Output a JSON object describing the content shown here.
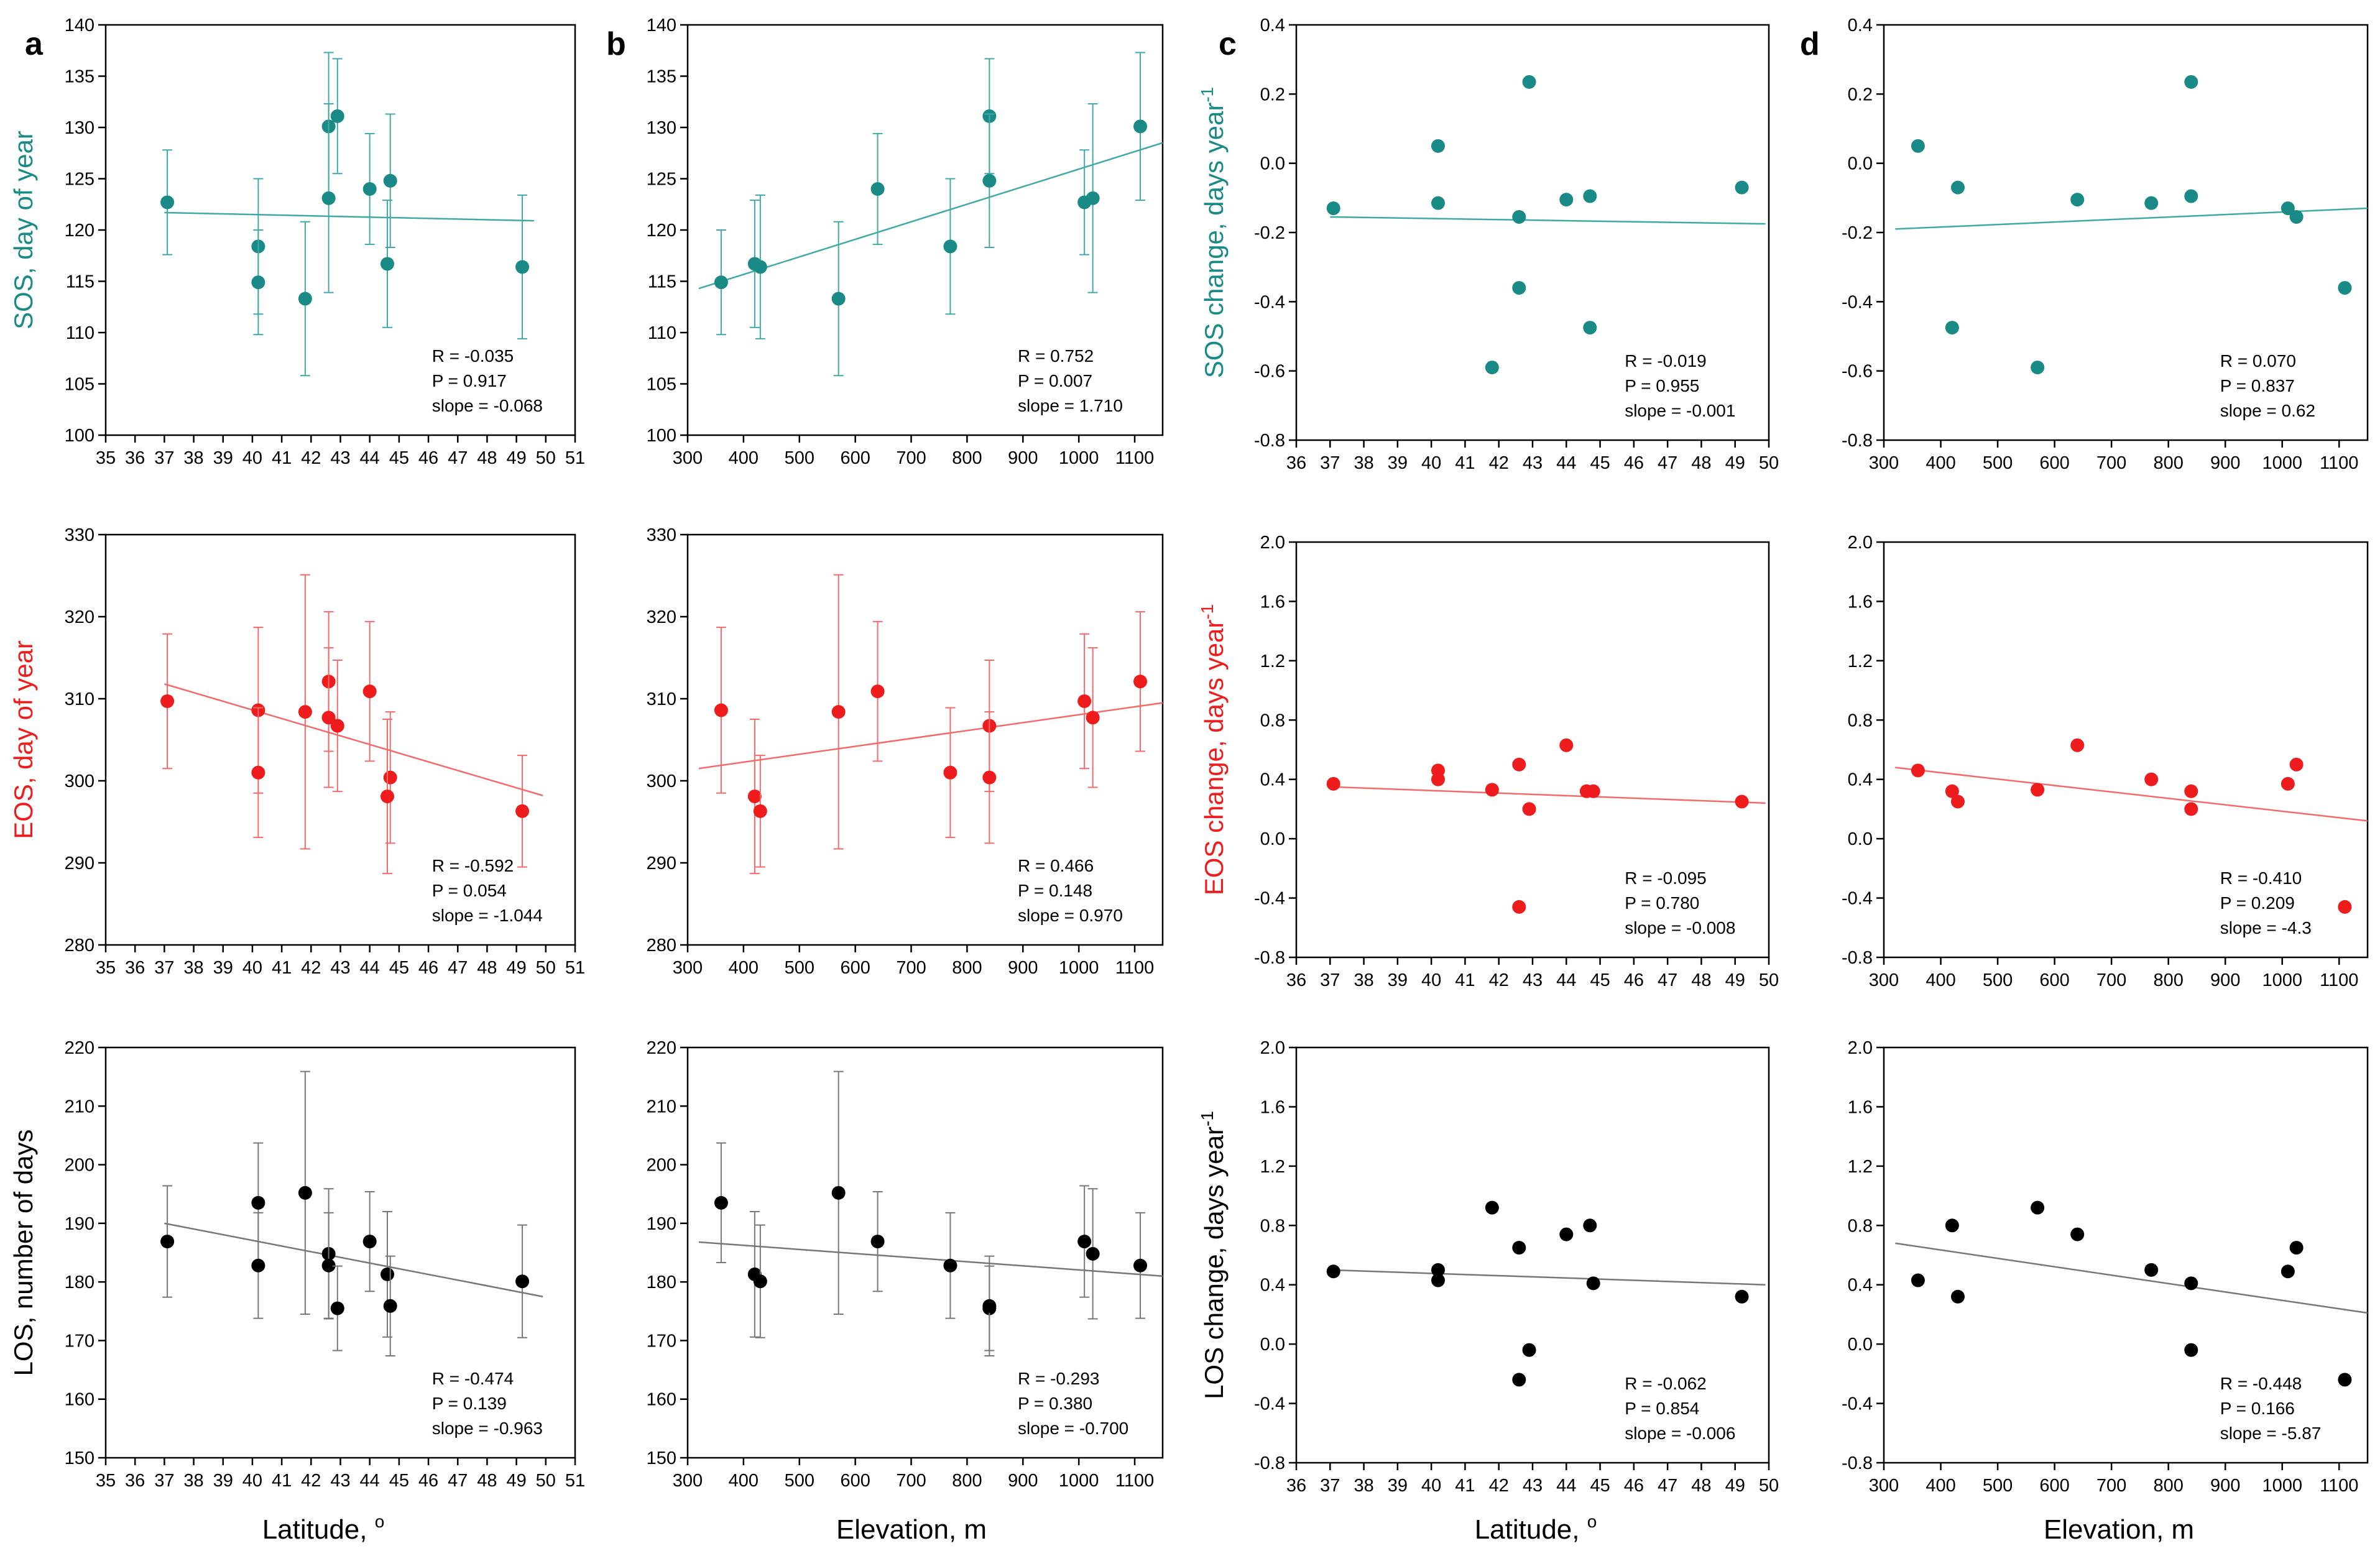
{
  "figure": {
    "panel_labels": [
      "a",
      "b",
      "c",
      "d"
    ],
    "x_labels": {
      "latitude": "Latitude, ",
      "latitude_sup": "o",
      "elevation": "Elevation, m"
    },
    "colors": {
      "teal": "#1a8a87",
      "red": "#ee1c1c",
      "black": "#000000",
      "line_teal": "#3fa9a6",
      "line_red": "#f26a6a",
      "line_black": "#777777"
    }
  },
  "chart_data": [
    {
      "id": "a1",
      "type": "scatter",
      "color": "teal",
      "xlabel": "",
      "ylabel": "SOS, day of year",
      "ylabel_sup": "",
      "xlim": [
        35,
        51
      ],
      "xticks": [
        35,
        36,
        37,
        38,
        39,
        40,
        41,
        42,
        43,
        44,
        45,
        46,
        47,
        48,
        49,
        50,
        51
      ],
      "ylim": [
        100,
        140
      ],
      "yticks": [
        100,
        105,
        110,
        115,
        120,
        125,
        130,
        135,
        140
      ],
      "ydec": 0,
      "points": [
        {
          "x": 37.1,
          "y": 122.7,
          "err": 5.1
        },
        {
          "x": 40.2,
          "y": 118.4,
          "err": 6.6
        },
        {
          "x": 40.2,
          "y": 114.9,
          "err": 5.1
        },
        {
          "x": 41.8,
          "y": 113.3,
          "err": 7.5
        },
        {
          "x": 42.6,
          "y": 130.1,
          "err": 7.2
        },
        {
          "x": 42.6,
          "y": 123.1,
          "err": 9.2
        },
        {
          "x": 42.9,
          "y": 131.1,
          "err": 5.6
        },
        {
          "x": 44.0,
          "y": 124.0,
          "err": 5.4
        },
        {
          "x": 44.7,
          "y": 124.8,
          "err": 6.5
        },
        {
          "x": 44.6,
          "y": 116.7,
          "err": 6.2
        },
        {
          "x": 49.2,
          "y": 116.4,
          "err": 7.0
        }
      ],
      "fit": {
        "x1": 37,
        "y1": 121.7,
        "x2": 49.6,
        "y2": 120.9
      },
      "stats": [
        "R = -0.035",
        "P = 0.917",
        "slope = -0.068"
      ]
    },
    {
      "id": "b1",
      "type": "scatter",
      "color": "teal",
      "xlabel": "",
      "ylabel": "",
      "ylabel_sup": "",
      "xlim": [
        300,
        1150
      ],
      "xticks": [
        300,
        400,
        500,
        600,
        700,
        800,
        900,
        1000,
        1100
      ],
      "ylim": [
        100,
        140
      ],
      "yticks": [
        100,
        105,
        110,
        115,
        120,
        125,
        130,
        135,
        140
      ],
      "ydec": 0,
      "points": [
        {
          "x": 360,
          "y": 114.9,
          "err": 5.1
        },
        {
          "x": 420,
          "y": 116.7,
          "err": 6.2
        },
        {
          "x": 430,
          "y": 116.4,
          "err": 7.0
        },
        {
          "x": 570,
          "y": 113.3,
          "err": 7.5
        },
        {
          "x": 640,
          "y": 124.0,
          "err": 5.4
        },
        {
          "x": 770,
          "y": 118.4,
          "err": 6.6
        },
        {
          "x": 840,
          "y": 131.1,
          "err": 5.6
        },
        {
          "x": 840,
          "y": 124.8,
          "err": 6.5
        },
        {
          "x": 1010,
          "y": 122.7,
          "err": 5.1
        },
        {
          "x": 1025,
          "y": 123.1,
          "err": 9.2
        },
        {
          "x": 1110,
          "y": 130.1,
          "err": 7.2
        }
      ],
      "fit": {
        "x1": 320,
        "y1": 114.3,
        "x2": 1150,
        "y2": 128.5
      },
      "stats": [
        "R = 0.752",
        "P = 0.007",
        "slope = 1.710"
      ]
    },
    {
      "id": "c1",
      "type": "scatter",
      "color": "teal",
      "xlabel": "",
      "ylabel": "SOS change, days year",
      "ylabel_sup": "-1",
      "xlim": [
        36,
        50
      ],
      "xticks": [
        36,
        37,
        38,
        39,
        40,
        41,
        42,
        43,
        44,
        45,
        46,
        47,
        48,
        49,
        50
      ],
      "ylim": [
        -0.8,
        0.4
      ],
      "yticks": [
        -0.8,
        -0.6,
        -0.4,
        -0.2,
        0.0,
        0.2,
        0.4
      ],
      "ydec": 1,
      "points": [
        {
          "x": 37.1,
          "y": -0.13
        },
        {
          "x": 40.2,
          "y": 0.05
        },
        {
          "x": 40.2,
          "y": -0.115
        },
        {
          "x": 41.8,
          "y": -0.59
        },
        {
          "x": 42.6,
          "y": -0.155
        },
        {
          "x": 42.6,
          "y": -0.36
        },
        {
          "x": 42.9,
          "y": 0.235
        },
        {
          "x": 44.0,
          "y": -0.105
        },
        {
          "x": 44.7,
          "y": -0.095
        },
        {
          "x": 44.7,
          "y": -0.475
        },
        {
          "x": 49.2,
          "y": -0.07
        }
      ],
      "fit": {
        "x1": 37,
        "y1": -0.155,
        "x2": 49.9,
        "y2": -0.175
      },
      "stats": [
        "R = -0.019",
        "P = 0.955",
        "slope = -0.001"
      ]
    },
    {
      "id": "d1",
      "type": "scatter",
      "color": "teal",
      "xlabel": "",
      "ylabel": "",
      "ylabel_sup": "",
      "xlim": [
        300,
        1150
      ],
      "xticks": [
        300,
        400,
        500,
        600,
        700,
        800,
        900,
        1000,
        1100
      ],
      "ylim": [
        -0.8,
        0.4
      ],
      "yticks": [
        -0.8,
        -0.6,
        -0.4,
        -0.2,
        0.0,
        0.2,
        0.4
      ],
      "ydec": 1,
      "points": [
        {
          "x": 360,
          "y": 0.05
        },
        {
          "x": 420,
          "y": -0.475
        },
        {
          "x": 430,
          "y": -0.07
        },
        {
          "x": 570,
          "y": -0.59
        },
        {
          "x": 640,
          "y": -0.105
        },
        {
          "x": 770,
          "y": -0.115
        },
        {
          "x": 840,
          "y": 0.235
        },
        {
          "x": 840,
          "y": -0.095
        },
        {
          "x": 1010,
          "y": -0.13
        },
        {
          "x": 1025,
          "y": -0.155
        },
        {
          "x": 1110,
          "y": -0.36
        }
      ],
      "fit": {
        "x1": 320,
        "y1": -0.19,
        "x2": 1150,
        "y2": -0.13
      },
      "stats": [
        "R = 0.070",
        "P = 0.837",
        "slope = 0.62"
      ]
    },
    {
      "id": "a2",
      "type": "scatter",
      "color": "red",
      "xlabel": "",
      "ylabel": "EOS, day of year",
      "ylabel_sup": "",
      "xlim": [
        35,
        51
      ],
      "xticks": [
        35,
        36,
        37,
        38,
        39,
        40,
        41,
        42,
        43,
        44,
        45,
        46,
        47,
        48,
        49,
        50,
        51
      ],
      "ylim": [
        280,
        330
      ],
      "yticks": [
        280,
        290,
        300,
        310,
        320,
        330
      ],
      "ydec": 0,
      "points": [
        {
          "x": 37.1,
          "y": 309.7,
          "err": 8.2
        },
        {
          "x": 40.2,
          "y": 308.6,
          "err": 10.1
        },
        {
          "x": 40.2,
          "y": 301.0,
          "err": 7.9
        },
        {
          "x": 41.8,
          "y": 308.4,
          "err": 16.7
        },
        {
          "x": 42.6,
          "y": 312.1,
          "err": 8.5
        },
        {
          "x": 42.6,
          "y": 307.7,
          "err": 8.5
        },
        {
          "x": 42.9,
          "y": 306.7,
          "err": 8.0
        },
        {
          "x": 44.0,
          "y": 310.9,
          "err": 8.5
        },
        {
          "x": 44.7,
          "y": 300.4,
          "err": 8.0
        },
        {
          "x": 44.6,
          "y": 298.1,
          "err": 9.4
        },
        {
          "x": 49.2,
          "y": 296.3,
          "err": 6.8
        }
      ],
      "fit": {
        "x1": 37,
        "y1": 311.8,
        "x2": 49.9,
        "y2": 298.2
      },
      "stats": [
        "R = -0.592",
        "P = 0.054",
        "slope = -1.044"
      ]
    },
    {
      "id": "b2",
      "type": "scatter",
      "color": "red",
      "xlabel": "",
      "ylabel": "",
      "ylabel_sup": "",
      "xlim": [
        300,
        1150
      ],
      "xticks": [
        300,
        400,
        500,
        600,
        700,
        800,
        900,
        1000,
        1100
      ],
      "ylim": [
        280,
        330
      ],
      "yticks": [
        280,
        290,
        300,
        310,
        320,
        330
      ],
      "ydec": 0,
      "points": [
        {
          "x": 360,
          "y": 308.6,
          "err": 10.1
        },
        {
          "x": 420,
          "y": 298.1,
          "err": 9.4
        },
        {
          "x": 430,
          "y": 296.3,
          "err": 6.8
        },
        {
          "x": 570,
          "y": 308.4,
          "err": 16.7
        },
        {
          "x": 640,
          "y": 310.9,
          "err": 8.5
        },
        {
          "x": 770,
          "y": 301.0,
          "err": 7.9
        },
        {
          "x": 840,
          "y": 306.7,
          "err": 8.0
        },
        {
          "x": 840,
          "y": 300.4,
          "err": 8.0
        },
        {
          "x": 1010,
          "y": 309.7,
          "err": 8.2
        },
        {
          "x": 1025,
          "y": 307.7,
          "err": 8.5
        },
        {
          "x": 1110,
          "y": 312.1,
          "err": 8.5
        }
      ],
      "fit": {
        "x1": 320,
        "y1": 301.5,
        "x2": 1150,
        "y2": 309.5
      },
      "stats": [
        "R = 0.466",
        "P = 0.148",
        "slope = 0.970"
      ]
    },
    {
      "id": "c2",
      "type": "scatter",
      "color": "red",
      "xlabel": "",
      "ylabel": "EOS change, days year",
      "ylabel_sup": "-1",
      "xlim": [
        36,
        50
      ],
      "xticks": [
        36,
        37,
        38,
        39,
        40,
        41,
        42,
        43,
        44,
        45,
        46,
        47,
        48,
        49,
        50
      ],
      "ylim": [
        -0.8,
        2.0
      ],
      "yticks": [
        -0.8,
        -0.4,
        0.0,
        0.4,
        0.8,
        1.2,
        1.6,
        2.0
      ],
      "ydec": 1,
      "points": [
        {
          "x": 37.1,
          "y": 0.37
        },
        {
          "x": 40.2,
          "y": 0.46
        },
        {
          "x": 40.2,
          "y": 0.4
        },
        {
          "x": 41.8,
          "y": 0.33
        },
        {
          "x": 42.6,
          "y": 0.5
        },
        {
          "x": 42.6,
          "y": -0.46
        },
        {
          "x": 42.9,
          "y": 0.2
        },
        {
          "x": 44.0,
          "y": 0.63
        },
        {
          "x": 44.6,
          "y": 0.32
        },
        {
          "x": 44.8,
          "y": 0.32
        },
        {
          "x": 49.2,
          "y": 0.25
        }
      ],
      "fit": {
        "x1": 37,
        "y1": 0.35,
        "x2": 49.9,
        "y2": 0.24
      },
      "stats": [
        "R = -0.095",
        "P = 0.780",
        "slope = -0.008"
      ]
    },
    {
      "id": "d2",
      "type": "scatter",
      "color": "red",
      "xlabel": "",
      "ylabel": "",
      "ylabel_sup": "",
      "xlim": [
        300,
        1150
      ],
      "xticks": [
        300,
        400,
        500,
        600,
        700,
        800,
        900,
        1000,
        1100
      ],
      "ylim": [
        -0.8,
        2.0
      ],
      "yticks": [
        -0.8,
        -0.4,
        0.0,
        0.4,
        0.8,
        1.2,
        1.6,
        2.0
      ],
      "ydec": 1,
      "points": [
        {
          "x": 360,
          "y": 0.46
        },
        {
          "x": 420,
          "y": 0.32
        },
        {
          "x": 430,
          "y": 0.25
        },
        {
          "x": 570,
          "y": 0.33
        },
        {
          "x": 640,
          "y": 0.63
        },
        {
          "x": 770,
          "y": 0.4
        },
        {
          "x": 840,
          "y": 0.32
        },
        {
          "x": 840,
          "y": 0.2
        },
        {
          "x": 1010,
          "y": 0.37
        },
        {
          "x": 1025,
          "y": 0.5
        },
        {
          "x": 1110,
          "y": -0.46
        }
      ],
      "fit": {
        "x1": 320,
        "y1": 0.48,
        "x2": 1150,
        "y2": 0.12
      },
      "stats": [
        "R = -0.410",
        "P = 0.209",
        "slope = -4.3"
      ]
    },
    {
      "id": "a3",
      "type": "scatter",
      "color": "black",
      "xlabel": "latitude",
      "ylabel": "LOS, number of days",
      "ylabel_sup": "",
      "xlim": [
        35,
        51
      ],
      "xticks": [
        35,
        36,
        37,
        38,
        39,
        40,
        41,
        42,
        43,
        44,
        45,
        46,
        47,
        48,
        49,
        50,
        51
      ],
      "ylim": [
        150,
        220
      ],
      "yticks": [
        150,
        160,
        170,
        180,
        190,
        200,
        210,
        220
      ],
      "ydec": 0,
      "points": [
        {
          "x": 37.1,
          "y": 186.9,
          "err": 9.5
        },
        {
          "x": 40.2,
          "y": 193.5,
          "err": 10.2
        },
        {
          "x": 40.2,
          "y": 182.8,
          "err": 9.0
        },
        {
          "x": 41.8,
          "y": 195.2,
          "err": 20.7
        },
        {
          "x": 42.6,
          "y": 184.8,
          "err": 11.1
        },
        {
          "x": 42.6,
          "y": 182.8,
          "err": 9.0
        },
        {
          "x": 42.9,
          "y": 175.5,
          "err": 7.2
        },
        {
          "x": 44.0,
          "y": 186.9,
          "err": 8.5
        },
        {
          "x": 44.6,
          "y": 181.3,
          "err": 10.7
        },
        {
          "x": 44.7,
          "y": 175.9,
          "err": 8.5
        },
        {
          "x": 49.2,
          "y": 180.1,
          "err": 9.6
        }
      ],
      "fit": {
        "x1": 37,
        "y1": 190.0,
        "x2": 49.9,
        "y2": 177.5
      },
      "stats": [
        "R = -0.474",
        "P = 0.139",
        "slope = -0.963"
      ]
    },
    {
      "id": "b3",
      "type": "scatter",
      "color": "black",
      "xlabel": "elevation",
      "ylabel": "",
      "ylabel_sup": "",
      "xlim": [
        300,
        1150
      ],
      "xticks": [
        300,
        400,
        500,
        600,
        700,
        800,
        900,
        1000,
        1100
      ],
      "ylim": [
        150,
        220
      ],
      "yticks": [
        150,
        160,
        170,
        180,
        190,
        200,
        210,
        220
      ],
      "ydec": 0,
      "points": [
        {
          "x": 360,
          "y": 193.5,
          "err": 10.2
        },
        {
          "x": 420,
          "y": 181.3,
          "err": 10.7
        },
        {
          "x": 430,
          "y": 180.1,
          "err": 9.6
        },
        {
          "x": 570,
          "y": 195.2,
          "err": 20.7
        },
        {
          "x": 640,
          "y": 186.9,
          "err": 8.5
        },
        {
          "x": 770,
          "y": 182.8,
          "err": 9.0
        },
        {
          "x": 840,
          "y": 175.5,
          "err": 7.2
        },
        {
          "x": 840,
          "y": 175.9,
          "err": 8.5
        },
        {
          "x": 1010,
          "y": 186.9,
          "err": 9.5
        },
        {
          "x": 1025,
          "y": 184.8,
          "err": 11.1
        },
        {
          "x": 1110,
          "y": 182.8,
          "err": 9.0
        }
      ],
      "fit": {
        "x1": 320,
        "y1": 186.8,
        "x2": 1150,
        "y2": 181.0
      },
      "stats": [
        "R = -0.293",
        "P = 0.380",
        "slope = -0.700"
      ]
    },
    {
      "id": "c3",
      "type": "scatter",
      "color": "black",
      "xlabel": "latitude",
      "ylabel": "LOS change, days year",
      "ylabel_sup": "-1",
      "xlim": [
        36,
        50
      ],
      "xticks": [
        36,
        37,
        38,
        39,
        40,
        41,
        42,
        43,
        44,
        45,
        46,
        47,
        48,
        49,
        50
      ],
      "ylim": [
        -0.8,
        2.0
      ],
      "yticks": [
        -0.8,
        -0.4,
        0.0,
        0.4,
        0.8,
        1.2,
        1.6,
        2.0
      ],
      "ydec": 1,
      "points": [
        {
          "x": 37.1,
          "y": 0.49
        },
        {
          "x": 40.2,
          "y": 0.5
        },
        {
          "x": 40.2,
          "y": 0.43
        },
        {
          "x": 41.8,
          "y": 0.92
        },
        {
          "x": 42.6,
          "y": 0.65
        },
        {
          "x": 42.6,
          "y": -0.24
        },
        {
          "x": 42.9,
          "y": -0.04
        },
        {
          "x": 44.0,
          "y": 0.74
        },
        {
          "x": 44.7,
          "y": 0.8
        },
        {
          "x": 44.8,
          "y": 0.41
        },
        {
          "x": 49.2,
          "y": 0.32
        }
      ],
      "fit": {
        "x1": 37,
        "y1": 0.5,
        "x2": 49.9,
        "y2": 0.4
      },
      "stats": [
        "R = -0.062",
        "P = 0.854",
        "slope = -0.006"
      ]
    },
    {
      "id": "d3",
      "type": "scatter",
      "color": "black",
      "xlabel": "elevation",
      "ylabel": "",
      "ylabel_sup": "",
      "xlim": [
        300,
        1150
      ],
      "xticks": [
        300,
        400,
        500,
        600,
        700,
        800,
        900,
        1000,
        1100
      ],
      "ylim": [
        -0.8,
        2.0
      ],
      "yticks": [
        -0.8,
        -0.4,
        0.0,
        0.4,
        0.8,
        1.2,
        1.6,
        2.0
      ],
      "ydec": 1,
      "points": [
        {
          "x": 360,
          "y": 0.43
        },
        {
          "x": 420,
          "y": 0.8
        },
        {
          "x": 430,
          "y": 0.32
        },
        {
          "x": 570,
          "y": 0.92
        },
        {
          "x": 640,
          "y": 0.74
        },
        {
          "x": 770,
          "y": 0.5
        },
        {
          "x": 840,
          "y": 0.41
        },
        {
          "x": 840,
          "y": -0.04
        },
        {
          "x": 1010,
          "y": 0.49
        },
        {
          "x": 1025,
          "y": 0.65
        },
        {
          "x": 1110,
          "y": -0.24
        }
      ],
      "fit": {
        "x1": 320,
        "y1": 0.68,
        "x2": 1150,
        "y2": 0.21
      },
      "stats": [
        "R = -0.448",
        "P = 0.166",
        "slope = -5.87"
      ]
    }
  ]
}
